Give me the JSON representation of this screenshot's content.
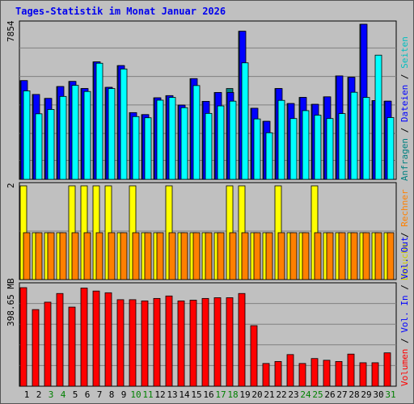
{
  "title": "Tages-Statistik im Monat Januar 2026",
  "colors": {
    "hits": "#008080",
    "files": "#0000ff",
    "pages": "#00ffff",
    "visits": "#ffff00",
    "sites": "#ff8000",
    "kbytes": "#ff0000",
    "panel_bg": "#c0c0c0",
    "grid": "#808080"
  },
  "chart_data": [
    {
      "type": "bar",
      "categories": [
        "1",
        "2",
        "3",
        "4",
        "5",
        "6",
        "7",
        "8",
        "9",
        "10",
        "11",
        "12",
        "13",
        "14",
        "15",
        "16",
        "17",
        "18",
        "19",
        "20",
        "21",
        "22",
        "23",
        "24",
        "25",
        "26",
        "27",
        "28",
        "29",
        "30",
        "31"
      ],
      "series": [
        {
          "name": "Anfragen",
          "values": [
            5000,
            4300,
            4100,
            4700,
            4960,
            4600,
            5950,
            4660,
            5760,
            3380,
            3280,
            4130,
            4240,
            3760,
            5100,
            3950,
            4400,
            4600,
            7500,
            3600,
            2940,
            4600,
            3840,
            4150,
            3800,
            4180,
            5240,
            5170,
            7854,
            3990,
            3960
          ]
        },
        {
          "name": "Dateien",
          "values": [
            5000,
            4300,
            4100,
            4700,
            4960,
            4600,
            5950,
            4660,
            5760,
            3380,
            3280,
            4130,
            4240,
            3760,
            5100,
            3950,
            4400,
            4400,
            7500,
            3600,
            2940,
            4600,
            3840,
            4150,
            3800,
            4180,
            5240,
            5170,
            7854,
            3990,
            3960
          ]
        },
        {
          "name": "Seiten",
          "values": [
            4480,
            3320,
            3540,
            4200,
            4760,
            4450,
            5880,
            4600,
            5590,
            3180,
            3120,
            4010,
            4150,
            3630,
            4750,
            3340,
            3720,
            3960,
            5900,
            3060,
            2360,
            4000,
            3080,
            3480,
            3250,
            3080,
            3330,
            4410,
            4150,
            6290,
            3130
          ]
        },
        {
          "name": "Besuche",
          "values": [
            2,
            1,
            1,
            1,
            2,
            2,
            2,
            2,
            1,
            2,
            1,
            1,
            2,
            1,
            1,
            1,
            1,
            2,
            2,
            1,
            1,
            2,
            1,
            1,
            2,
            1,
            1,
            1,
            1,
            1,
            1
          ]
        },
        {
          "name": "Rechner",
          "values": [
            1,
            1,
            1,
            1,
            1,
            1,
            1,
            1,
            1,
            1,
            1,
            1,
            1,
            1,
            1,
            1,
            1,
            1,
            1,
            1,
            1,
            1,
            1,
            1,
            1,
            1,
            1,
            1,
            1,
            1,
            1
          ]
        },
        {
          "name": "Volumen",
          "values": [
            398.65,
            310,
            340,
            375,
            320,
            397,
            385,
            378,
            350,
            350,
            345,
            355,
            365,
            345,
            348,
            355,
            358,
            358,
            375,
            245,
            92,
            100,
            128,
            92,
            112,
            105,
            100,
            130,
            95,
            95,
            135
          ]
        }
      ],
      "panels": [
        {
          "ymax": 7854,
          "max_label": "7854"
        },
        {
          "ymax": 2,
          "max_label": "2"
        },
        {
          "ymax": 398.65,
          "max_label": "398.65 MB"
        }
      ],
      "legend": {
        "top": [
          {
            "text": "Anfragen",
            "color": "#008080"
          },
          {
            "text": "Dateien",
            "color": "#0000ff"
          },
          {
            "text": "Seiten",
            "color": "#00bfbf"
          }
        ],
        "middle": [
          {
            "text": "Besuche",
            "color": "#cccc00"
          },
          {
            "text": "Rechner",
            "color": "#ff8000"
          }
        ],
        "bottom": [
          {
            "text": "Volumen",
            "color": "#ff0000"
          },
          {
            "text": "Vol. In",
            "color": "#0000ff"
          },
          {
            "text": "Vol. Out",
            "color": "#0000ff"
          }
        ]
      },
      "weekend_days": [
        "3",
        "4",
        "10",
        "11",
        "17",
        "18",
        "24",
        "25",
        "31"
      ],
      "weekend_color": "#008000",
      "weekday_color": "#000000",
      "grid": true
    }
  ]
}
